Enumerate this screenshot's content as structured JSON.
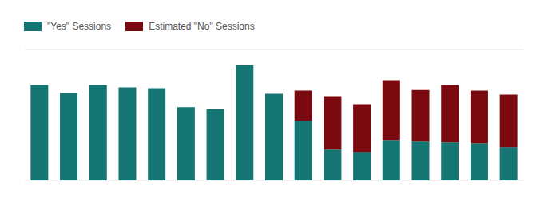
{
  "chart_data": {
    "type": "bar",
    "stacked": true,
    "grid": true,
    "legend": "top-left",
    "tick_labels": false,
    "categories": [
      null,
      null,
      null,
      null,
      null,
      null,
      null,
      null,
      null,
      null,
      null,
      null,
      null,
      null,
      null,
      null,
      null
    ],
    "ylim": [
      0,
      8
    ],
    "yticks": [
      0,
      1,
      2,
      3,
      4,
      5,
      6,
      7,
      8
    ],
    "series": [
      {
        "name": "\"Yes\" Sessions",
        "color": "#147573",
        "values": [
          5.83,
          5.34,
          5.83,
          5.68,
          5.63,
          4.47,
          4.37,
          7.04,
          5.29,
          3.64,
          1.89,
          1.75,
          2.48,
          2.38,
          2.33,
          2.28,
          2.04
        ]
      },
      {
        "name": "Estimated \"No\" Sessions",
        "color": "#7a0a10",
        "values": [
          null,
          null,
          null,
          null,
          null,
          null,
          null,
          null,
          null,
          1.85,
          3.26,
          2.91,
          3.64,
          3.15,
          3.5,
          3.21,
          3.2
        ]
      }
    ]
  }
}
